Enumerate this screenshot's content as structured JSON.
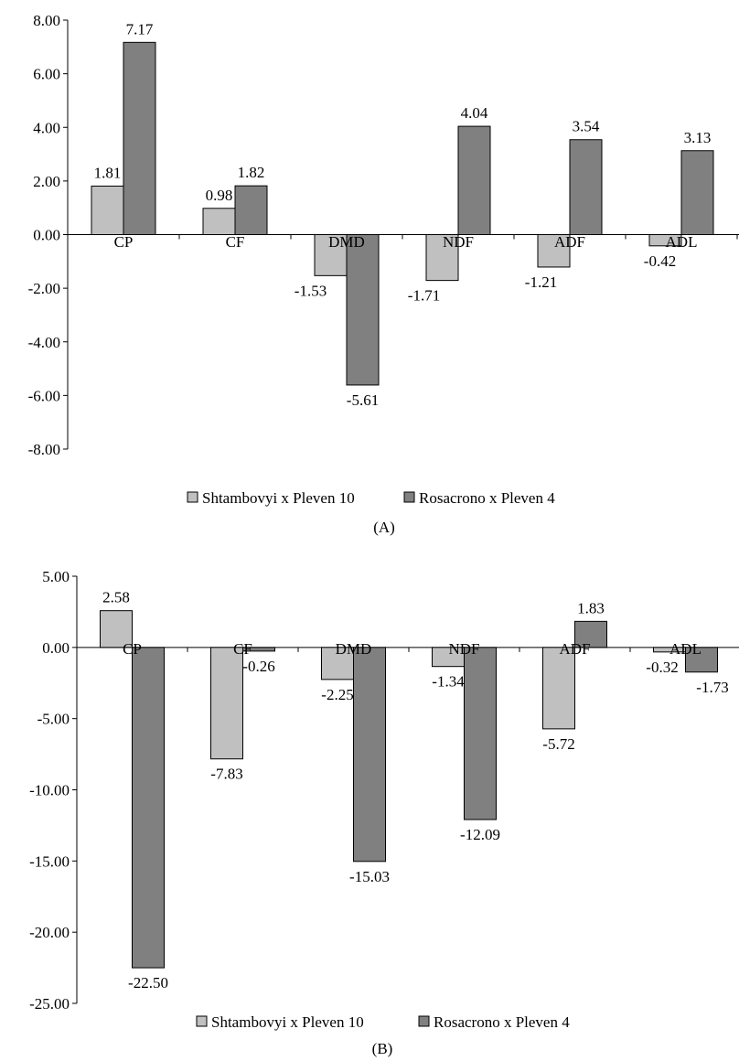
{
  "colors": {
    "series1": "#c0c0c0",
    "series2": "#808080",
    "stroke": "#000000"
  },
  "chart_data": [
    {
      "type": "bar",
      "panel_label": "(A)",
      "categories": [
        "CP",
        "CF",
        "DMD",
        "NDF",
        "ADF",
        "ADL"
      ],
      "ylim": [
        -8,
        8
      ],
      "yticks": [
        8,
        6,
        4,
        2,
        0,
        -2,
        -4,
        -6,
        -8
      ],
      "ytick_labels": [
        "8.00",
        "6.00",
        "4.00",
        "2.00",
        "0.00",
        "-2.00",
        "-4.00",
        "-6.00",
        "-8.00"
      ],
      "legend_position": "bottom",
      "grid": false,
      "series": [
        {
          "name": "Shtambovyi x Pleven 10",
          "values": [
            1.81,
            0.98,
            -1.53,
            -1.71,
            -1.21,
            -0.42
          ],
          "labels": [
            "1.81",
            "0.98",
            "-1.53",
            "-1.71",
            "-1.21",
            "-0.42"
          ]
        },
        {
          "name": "Rosacrono x Pleven 4",
          "values": [
            7.17,
            1.82,
            -5.61,
            4.04,
            3.54,
            3.13
          ],
          "labels": [
            "7.17",
            "1.82",
            "-5.61",
            "4.04",
            "3.54",
            "3.13"
          ]
        }
      ]
    },
    {
      "type": "bar",
      "panel_label": "(B)",
      "categories": [
        "CP",
        "CF",
        "DMD",
        "NDF",
        "ADF",
        "ADL"
      ],
      "ylim": [
        -25,
        5
      ],
      "yticks": [
        5,
        0,
        -5,
        -10,
        -15,
        -20,
        -25
      ],
      "ytick_labels": [
        "5.00",
        "0.00",
        "-5.00",
        "-10.00",
        "-15.00",
        "-20.00",
        "-25.00"
      ],
      "legend_position": "bottom",
      "grid": false,
      "series": [
        {
          "name": "Shtambovyi x Pleven 10",
          "values": [
            2.58,
            -7.83,
            -2.25,
            -1.34,
            -5.72,
            -0.32
          ],
          "labels": [
            "2.58",
            "-7.83",
            "-2.25",
            "-1.34",
            "-5.72",
            "-0.32"
          ]
        },
        {
          "name": "Rosacrono x Pleven 4",
          "values": [
            -22.5,
            -0.26,
            -15.03,
            -12.09,
            1.83,
            -1.73
          ],
          "labels": [
            "-22.50",
            "-0.26",
            "-15.03",
            "-12.09",
            "1.83",
            "-1.73"
          ]
        }
      ]
    }
  ]
}
